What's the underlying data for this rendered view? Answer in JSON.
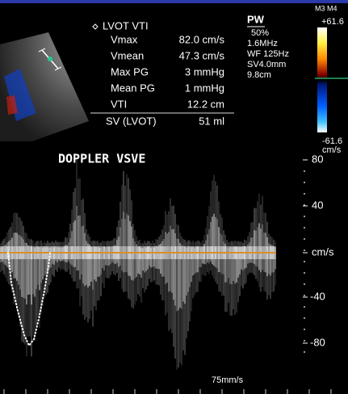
{
  "measurements": {
    "title": "LVOT VTI",
    "rows": [
      [
        "Vmax",
        "82.0 cm/s"
      ],
      [
        "Vmean",
        "47.3 cm/s"
      ],
      [
        "Max PG",
        "3 mmHg"
      ],
      [
        "Mean PG",
        "1 mmHg"
      ],
      [
        "VTI",
        "12.2 cm"
      ]
    ],
    "result": [
      "SV (LVOT)",
      "51 ml"
    ]
  },
  "settings": {
    "mode": "PW",
    "lines": [
      "50%",
      "1.6MHz",
      "WF 125Hz",
      "SV4.0mm",
      "9.8cm"
    ]
  },
  "color_bar": {
    "label": "M3 M4",
    "top": "+61.6",
    "bottom": "-61.6",
    "unit": "cm/s"
  },
  "spectrum": {
    "label": "DOPPLER VSVE",
    "scale": [
      "80",
      "40",
      "cm/s",
      "-40",
      "-80"
    ],
    "sweep": "75mm/s"
  }
}
